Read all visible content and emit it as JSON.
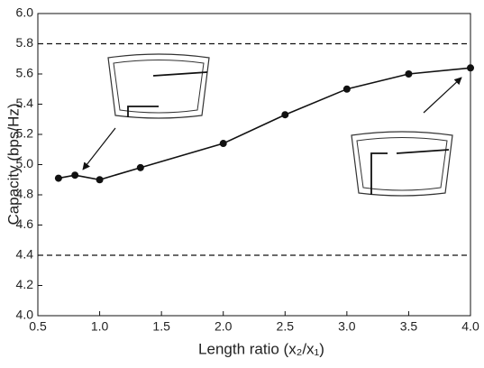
{
  "chart_data": {
    "type": "line",
    "x_label": "Length ratio (x₂/x₁)",
    "y_label": "Capacity (bps/Hz)",
    "x": [
      0.667,
      0.8,
      1.0,
      1.33,
      2.0,
      2.5,
      3.0,
      3.5,
      4.0
    ],
    "values": [
      4.91,
      4.93,
      4.9,
      4.98,
      5.14,
      5.33,
      5.5,
      5.6,
      5.64
    ],
    "color": "#111111",
    "xlim": [
      0.5,
      4.0
    ],
    "ylim": [
      4.0,
      6.0
    ],
    "xticks": [
      0.5,
      {
        "value": 1,
        "label": "1.0"
      },
      1.5,
      {
        "value": 2,
        "label": "2.0"
      },
      2.5,
      {
        "value": 3,
        "label": "3.0"
      },
      3.5,
      {
        "value": 4,
        "label": "4.0"
      }
    ],
    "yticks": [
      {
        "value": 4,
        "label": "4.0"
      },
      4.2,
      4.4,
      4.6,
      4.8,
      {
        "value": 5,
        "label": "5.0"
      },
      5.2,
      5.4,
      5.6,
      5.8,
      {
        "value": 6,
        "label": "6.0"
      }
    ],
    "reference_lines": [
      5.8,
      4.4
    ]
  }
}
